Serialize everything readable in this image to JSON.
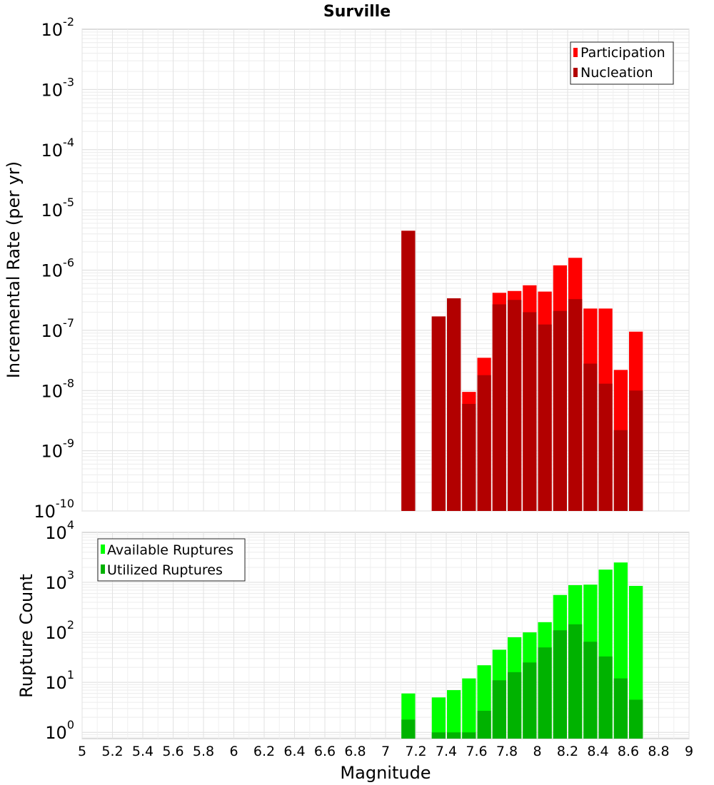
{
  "chart_data": [
    {
      "type": "bar",
      "title": "Surville",
      "xlabel": "",
      "ylabel": "Incremental Rate (per yr)",
      "yscale": "log",
      "ylim": [
        1e-10,
        0.01
      ],
      "xlim": [
        5,
        9
      ],
      "y_tick_labels": [
        {
          "base": "10",
          "exp": "-10"
        },
        {
          "base": "10",
          "exp": "-9"
        },
        {
          "base": "10",
          "exp": "-8"
        },
        {
          "base": "10",
          "exp": "-7"
        },
        {
          "base": "10",
          "exp": "-6"
        },
        {
          "base": "10",
          "exp": "-5"
        },
        {
          "base": "10",
          "exp": "-4"
        },
        {
          "base": "10",
          "exp": "-3"
        },
        {
          "base": "10",
          "exp": "-2"
        }
      ],
      "legend": {
        "position": "top-right",
        "entries": [
          "Participation",
          "Nucleation"
        ]
      },
      "grid": true,
      "series": [
        {
          "name": "Participation",
          "color": "#ff0000",
          "x": [
            7.1,
            7.3,
            7.4,
            7.5,
            7.6,
            7.7,
            7.8,
            7.9,
            8.0,
            8.1,
            8.2,
            8.3,
            8.4,
            8.5,
            8.6
          ],
          "values": [
            4.5e-06,
            1.7e-07,
            3.4e-07,
            9.5e-09,
            3.5e-08,
            4.2e-07,
            4.5e-07,
            5.6e-07,
            4.4e-07,
            1.2e-06,
            1.6e-06,
            2.3e-07,
            2.3e-07,
            2.2e-08,
            9.5e-08
          ]
        },
        {
          "name": "Nucleation",
          "color": "#b20000",
          "x": [
            7.1,
            7.3,
            7.4,
            7.5,
            7.6,
            7.7,
            7.8,
            7.9,
            8.0,
            8.1,
            8.2,
            8.3,
            8.4,
            8.5,
            8.6
          ],
          "values": [
            4.5e-06,
            1.7e-07,
            3.4e-07,
            6e-09,
            1.8e-08,
            2.7e-07,
            3.2e-07,
            2e-07,
            1.25e-07,
            2.1e-07,
            3.3e-07,
            2.8e-08,
            1.3e-08,
            2.2e-09,
            1e-08
          ]
        }
      ]
    },
    {
      "type": "bar",
      "title": "",
      "xlabel": "Magnitude",
      "ylabel": "Rupture Count",
      "yscale": "log",
      "ylim": [
        0.75,
        10000
      ],
      "xlim": [
        5,
        9
      ],
      "y_tick_labels": [
        {
          "base": "10",
          "exp": "0"
        },
        {
          "base": "10",
          "exp": "1"
        },
        {
          "base": "10",
          "exp": "2"
        },
        {
          "base": "10",
          "exp": "3"
        },
        {
          "base": "10",
          "exp": "4"
        }
      ],
      "x_tick_labels": [
        "5",
        "5.2",
        "5.4",
        "5.6",
        "5.8",
        "6",
        "6.2",
        "6.4",
        "6.6",
        "6.8",
        "7",
        "7.2",
        "7.4",
        "7.6",
        "7.8",
        "8",
        "8.2",
        "8.4",
        "8.6",
        "8.8",
        "9"
      ],
      "legend": {
        "position": "top-left",
        "entries": [
          "Available Ruptures",
          "Utilized Ruptures"
        ]
      },
      "grid": true,
      "series": [
        {
          "name": "Available Ruptures",
          "color": "#00ff00",
          "x": [
            7.1,
            7.3,
            7.4,
            7.5,
            7.6,
            7.7,
            7.8,
            7.9,
            8.0,
            8.1,
            8.2,
            8.3,
            8.4,
            8.5,
            8.6
          ],
          "values": [
            6,
            5,
            7,
            12,
            22,
            45,
            80,
            100,
            160,
            560,
            880,
            900,
            1800,
            2500,
            850
          ]
        },
        {
          "name": "Utilized Ruptures",
          "color": "#00b200",
          "x": [
            7.1,
            7.3,
            7.4,
            7.5,
            7.6,
            7.7,
            7.8,
            7.9,
            8.0,
            8.1,
            8.2,
            8.3,
            8.4,
            8.5,
            8.6
          ],
          "values": [
            1.8,
            1,
            1,
            1,
            2.7,
            11,
            16,
            25,
            50,
            110,
            145,
            65,
            33,
            12,
            4.5
          ]
        }
      ]
    }
  ]
}
